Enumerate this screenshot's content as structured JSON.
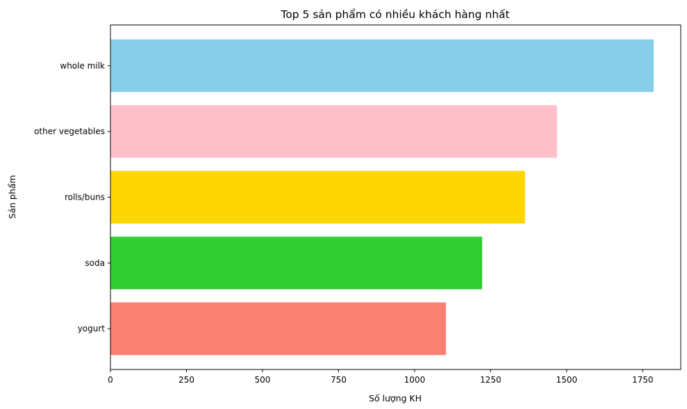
{
  "chart_data": {
    "type": "bar",
    "orientation": "horizontal",
    "title": "Top 5 sản phẩm có nhiều khách hàng nhất",
    "xlabel": "Số lượng KH",
    "ylabel": "Sản phẩm",
    "categories": [
      "whole milk",
      "other vegetables",
      "rolls/buns",
      "soda",
      "yogurt"
    ],
    "values": [
      1786,
      1468,
      1363,
      1222,
      1103
    ],
    "colors": [
      "#87ceeb",
      "#ffc0cb",
      "#ffd700",
      "#32cd32",
      "#fa8072"
    ],
    "xlim": [
      0,
      1875
    ],
    "xticks": [
      0,
      250,
      500,
      750,
      1000,
      1250,
      1500,
      1750
    ],
    "grid": false,
    "legend": "none"
  }
}
